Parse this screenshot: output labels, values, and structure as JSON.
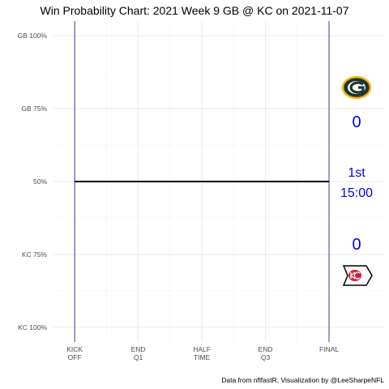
{
  "chart_data": {
    "type": "line",
    "title": "Win Probability Chart: 2021 Week 9 GB @ KC on 2021-11-07",
    "xlabel": "",
    "ylabel": "",
    "x_ticks": [
      {
        "x": 0,
        "lines": [
          "KICK",
          "OFF"
        ]
      },
      {
        "x": 15,
        "lines": [
          "END",
          "Q1"
        ]
      },
      {
        "x": 30,
        "lines": [
          "HALF",
          "TIME"
        ]
      },
      {
        "x": 45,
        "lines": [
          "END",
          "Q3"
        ]
      },
      {
        "x": 60,
        "lines": [
          "FINAL"
        ]
      }
    ],
    "y_ticks": [
      {
        "y": 1.0,
        "label": "GB 100%"
      },
      {
        "y": 0.75,
        "label": "GB 75%"
      },
      {
        "y": 0.5,
        "label": "50%"
      },
      {
        "y": 0.25,
        "label": "KC 75%"
      },
      {
        "y": 0.0,
        "label": "KC 100%"
      }
    ],
    "xlim": [
      -5,
      73
    ],
    "ylim": [
      -0.05,
      1.05
    ],
    "vertical_lines": [
      0,
      60
    ],
    "grid": true,
    "series": [
      {
        "x": [
          0,
          60
        ],
        "y": [
          0.5,
          0.5
        ],
        "color": "#000000"
      }
    ],
    "annotations": {
      "home_team_logo": "green-bay-packers-logo",
      "away_team_logo": "kansas-city-chiefs-logo",
      "gb_score": "0",
      "kc_score": "0",
      "quarter": "1st",
      "clock": "15:00",
      "annotation_color": "#0000ee"
    },
    "caption": "Data from nflfastR, Visualization by @LeeSharpeNFL"
  }
}
